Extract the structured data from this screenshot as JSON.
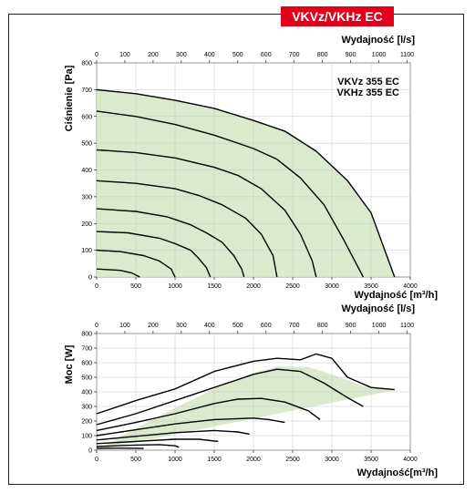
{
  "header": {
    "title": "VKVz/VKHz EC"
  },
  "colors": {
    "accent": "#e3001b",
    "fill": "#dbe9cc",
    "curve": "#000000",
    "grid": "#c8c8c8"
  },
  "chart_data": [
    {
      "type": "line",
      "name": "pressure",
      "models": [
        "VKVz 355 EC",
        "VKHz 355 EC"
      ],
      "ylabel": "Ciśnienie [Pa]",
      "xlabel_bottom": "Wydajność [m³/h]",
      "xlabel_top": "Wydajność [l/s]",
      "xlim": [
        0,
        4000
      ],
      "ylim": [
        0,
        800
      ],
      "xticks": [
        0,
        500,
        1000,
        1500,
        2000,
        2500,
        3000,
        3500,
        4000
      ],
      "yticks": [
        0,
        100,
        200,
        300,
        400,
        500,
        600,
        700,
        800
      ],
      "top_ticks": [
        0,
        100,
        200,
        300,
        400,
        500,
        600,
        700,
        800,
        900,
        1000,
        1100
      ],
      "grid": true,
      "envelope": [
        [
          0,
          700
        ],
        [
          500,
          685
        ],
        [
          1000,
          660
        ],
        [
          1500,
          630
        ],
        [
          2000,
          585
        ],
        [
          2400,
          545
        ],
        [
          2800,
          470
        ],
        [
          3200,
          360
        ],
        [
          3500,
          240
        ],
        [
          3800,
          0
        ],
        [
          0,
          0
        ]
      ],
      "series": [
        {
          "values": [
            [
              0,
              700
            ],
            [
              500,
              685
            ],
            [
              1000,
              660
            ],
            [
              1500,
              630
            ],
            [
              2000,
              585
            ],
            [
              2400,
              545
            ],
            [
              2800,
              470
            ],
            [
              3200,
              360
            ],
            [
              3500,
              240
            ],
            [
              3800,
              0
            ]
          ]
        },
        {
          "values": [
            [
              0,
              620
            ],
            [
              500,
              600
            ],
            [
              1000,
              570
            ],
            [
              1500,
              530
            ],
            [
              2000,
              480
            ],
            [
              2300,
              440
            ],
            [
              2600,
              370
            ],
            [
              2900,
              270
            ],
            [
              3150,
              140
            ],
            [
              3400,
              0
            ]
          ]
        },
        {
          "values": [
            [
              0,
              475
            ],
            [
              500,
              465
            ],
            [
              1000,
              445
            ],
            [
              1500,
              410
            ],
            [
              1800,
              380
            ],
            [
              2100,
              330
            ],
            [
              2400,
              250
            ],
            [
              2600,
              160
            ],
            [
              2750,
              60
            ],
            [
              2800,
              0
            ]
          ]
        },
        {
          "values": [
            [
              0,
              360
            ],
            [
              500,
              350
            ],
            [
              1000,
              330
            ],
            [
              1300,
              305
            ],
            [
              1600,
              270
            ],
            [
              1900,
              220
            ],
            [
              2100,
              160
            ],
            [
              2250,
              80
            ],
            [
              2300,
              0
            ]
          ]
        },
        {
          "values": [
            [
              0,
              255
            ],
            [
              500,
              245
            ],
            [
              900,
              225
            ],
            [
              1200,
              195
            ],
            [
              1400,
              165
            ],
            [
              1600,
              130
            ],
            [
              1750,
              80
            ],
            [
              1850,
              30
            ],
            [
              1880,
              0
            ]
          ]
        },
        {
          "values": [
            [
              0,
              170
            ],
            [
              400,
              165
            ],
            [
              800,
              145
            ],
            [
              1000,
              125
            ],
            [
              1200,
              100
            ],
            [
              1300,
              70
            ],
            [
              1400,
              35
            ],
            [
              1450,
              0
            ]
          ]
        },
        {
          "values": [
            [
              0,
              100
            ],
            [
              300,
              95
            ],
            [
              600,
              80
            ],
            [
              800,
              60
            ],
            [
              950,
              30
            ],
            [
              1000,
              0
            ]
          ]
        },
        {
          "values": [
            [
              0,
              30
            ],
            [
              300,
              25
            ],
            [
              450,
              15
            ],
            [
              550,
              0
            ]
          ]
        }
      ]
    },
    {
      "type": "line",
      "name": "power",
      "ylabel": "Moc [W]",
      "xlabel_bottom": "Wydajność[m³/h]",
      "xlabel_top": "Wydajność [l/s]",
      "xlim": [
        0,
        4000
      ],
      "ylim": [
        0,
        800
      ],
      "xticks": [
        0,
        500,
        1000,
        1500,
        2000,
        2500,
        3000,
        3500,
        4000
      ],
      "yticks": [
        0,
        100,
        200,
        300,
        400,
        500,
        600,
        700,
        800
      ],
      "top_ticks": [
        0,
        100,
        200,
        300,
        400,
        500,
        600,
        700,
        800,
        900,
        1000,
        1100
      ],
      "grid": true,
      "envelope": [
        [
          0,
          0
        ],
        [
          3500,
          380
        ],
        [
          3800,
          410
        ],
        [
          3400,
          440
        ],
        [
          3000,
          520
        ],
        [
          2700,
          570
        ],
        [
          2300,
          575
        ],
        [
          2000,
          530
        ],
        [
          1500,
          420
        ],
        [
          1000,
          290
        ],
        [
          500,
          150
        ],
        [
          0,
          0
        ]
      ],
      "series": [
        {
          "values": [
            [
              0,
              250
            ],
            [
              500,
              340
            ],
            [
              1000,
              420
            ],
            [
              1500,
              540
            ],
            [
              2000,
              610
            ],
            [
              2300,
              630
            ],
            [
              2600,
              620
            ],
            [
              2800,
              660
            ],
            [
              3000,
              630
            ],
            [
              3200,
              500
            ],
            [
              3500,
              430
            ],
            [
              3800,
              415
            ]
          ]
        },
        {
          "values": [
            [
              0,
              175
            ],
            [
              500,
              250
            ],
            [
              1000,
              340
            ],
            [
              1500,
              430
            ],
            [
              2000,
              520
            ],
            [
              2300,
              555
            ],
            [
              2600,
              540
            ],
            [
              2900,
              460
            ],
            [
              3200,
              360
            ],
            [
              3400,
              300
            ]
          ]
        },
        {
          "values": [
            [
              0,
              135
            ],
            [
              500,
              190
            ],
            [
              1000,
              250
            ],
            [
              1500,
              320
            ],
            [
              1800,
              350
            ],
            [
              2100,
              355
            ],
            [
              2400,
              330
            ],
            [
              2700,
              270
            ],
            [
              2850,
              210
            ]
          ]
        },
        {
          "values": [
            [
              0,
              100
            ],
            [
              500,
              140
            ],
            [
              1000,
              180
            ],
            [
              1500,
              210
            ],
            [
              2000,
              220
            ],
            [
              2200,
              210
            ],
            [
              2400,
              190
            ]
          ]
        },
        {
          "values": [
            [
              0,
              70
            ],
            [
              500,
              95
            ],
            [
              1000,
              120
            ],
            [
              1500,
              135
            ],
            [
              1800,
              125
            ],
            [
              1950,
              110
            ]
          ]
        },
        {
          "values": [
            [
              0,
              45
            ],
            [
              500,
              60
            ],
            [
              1000,
              75
            ],
            [
              1300,
              75
            ],
            [
              1550,
              60
            ]
          ]
        },
        {
          "values": [
            [
              0,
              25
            ],
            [
              500,
              35
            ],
            [
              800,
              38
            ],
            [
              1000,
              30
            ],
            [
              1050,
              20
            ]
          ]
        },
        {
          "values": [
            [
              0,
              12
            ],
            [
              300,
              14
            ],
            [
              600,
              12
            ]
          ]
        }
      ]
    }
  ]
}
